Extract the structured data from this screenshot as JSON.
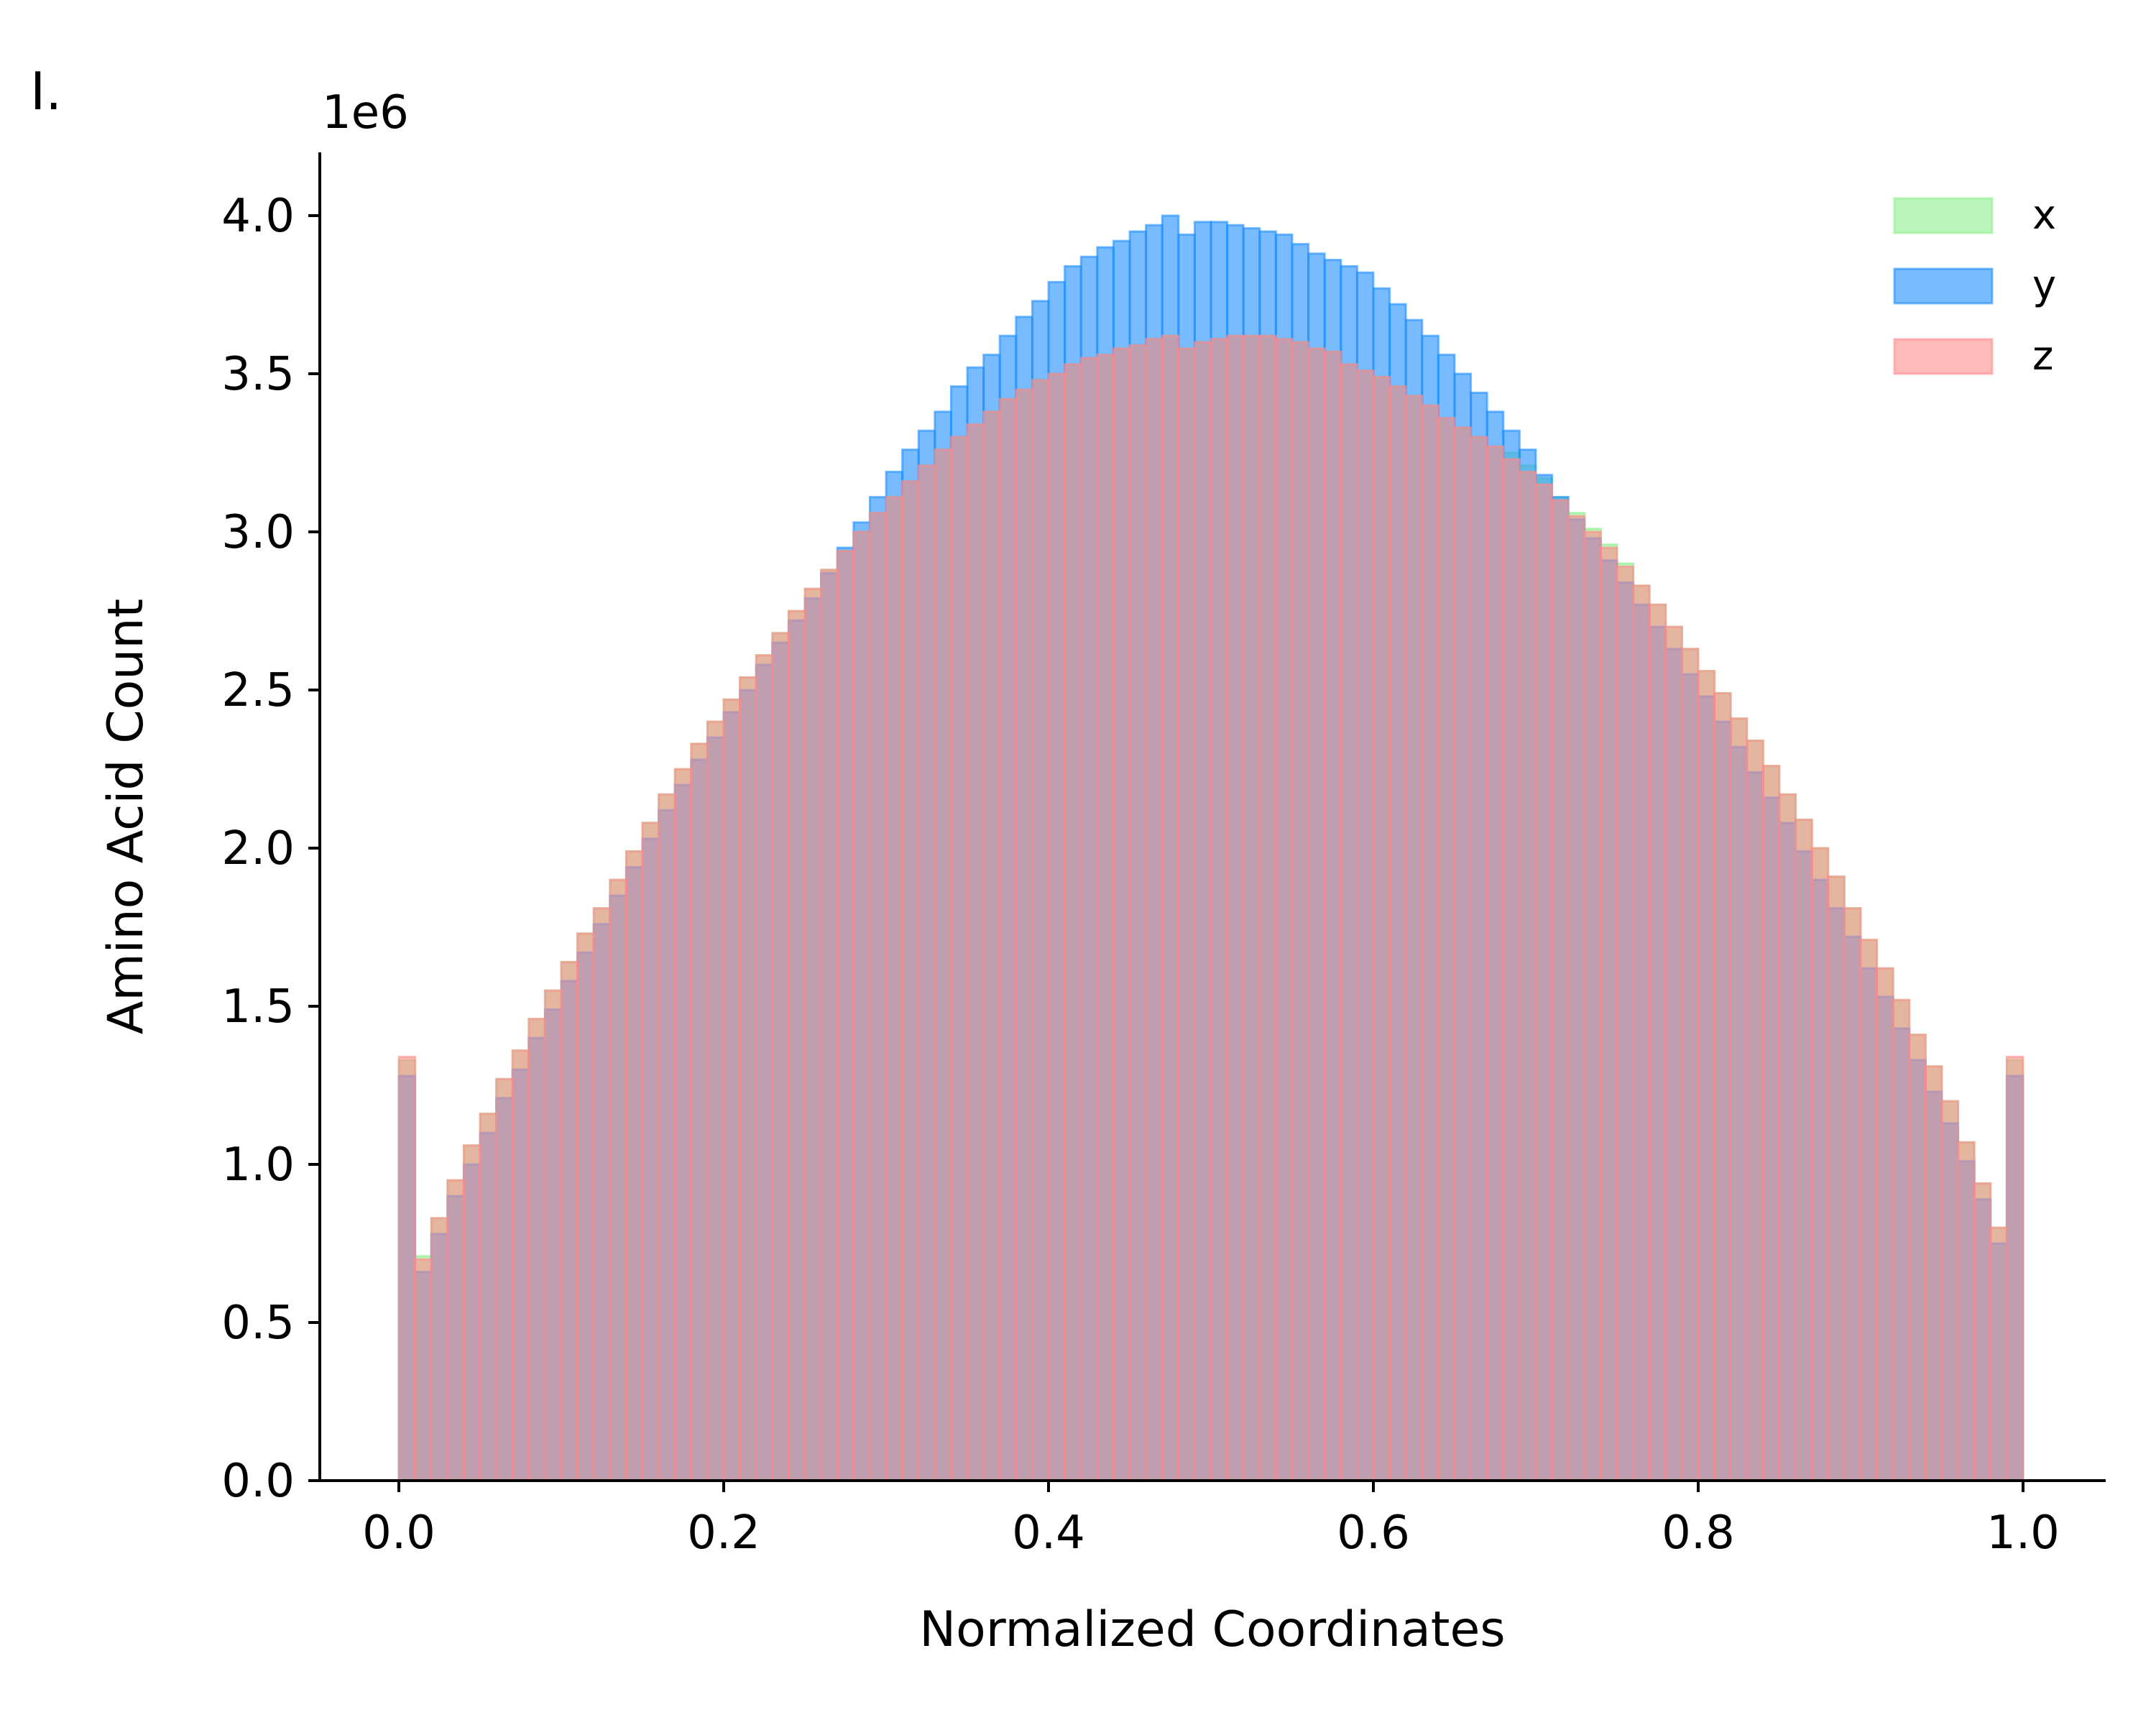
{
  "panel_label": "I.",
  "chart_data": {
    "type": "bar",
    "subtype": "overlaid histogram",
    "xlabel": "Normalized Coordinates",
    "ylabel": "Amino Acid Count",
    "y_offset_text": "1e6",
    "xlim": [
      -0.05,
      1.05
    ],
    "ylim": [
      0,
      4200000
    ],
    "xticks": [
      "0.0",
      "0.2",
      "0.4",
      "0.6",
      "0.8",
      "1.0"
    ],
    "yticks": [
      "0.0",
      "0.5",
      "1.0",
      "1.5",
      "2.0",
      "2.5",
      "3.0",
      "3.5",
      "4.0"
    ],
    "grid": false,
    "legend_position": "top-right",
    "bins": 100,
    "bin_range": [
      0,
      1
    ],
    "series": [
      {
        "name": "x",
        "color": "#90EE90",
        "values": [
          1.33,
          0.71,
          0.83,
          0.95,
          1.06,
          1.16,
          1.27,
          1.36,
          1.46,
          1.55,
          1.64,
          1.73,
          1.81,
          1.9,
          1.99,
          2.08,
          2.17,
          2.25,
          2.33,
          2.4,
          2.47,
          2.54,
          2.61,
          2.68,
          2.75,
          2.82,
          2.88,
          2.94,
          3.0,
          3.06,
          3.11,
          3.16,
          3.21,
          3.26,
          3.3,
          3.34,
          3.38,
          3.42,
          3.45,
          3.48,
          3.5,
          3.53,
          3.55,
          3.56,
          3.58,
          3.59,
          3.61,
          3.62,
          3.58,
          3.6,
          3.61,
          3.62,
          3.62,
          3.62,
          3.61,
          3.6,
          3.58,
          3.57,
          3.53,
          3.51,
          3.49,
          3.46,
          3.43,
          3.4,
          3.36,
          3.33,
          3.3,
          3.27,
          3.25,
          3.21,
          3.17,
          3.11,
          3.06,
          3.01,
          2.96,
          2.9,
          2.83,
          2.77,
          2.7,
          2.63,
          2.56,
          2.49,
          2.41,
          2.34,
          2.26,
          2.17,
          2.09,
          2.0,
          1.91,
          1.81,
          1.71,
          1.62,
          1.52,
          1.41,
          1.31,
          1.2,
          1.07,
          0.94,
          0.8,
          1.33
        ]
      },
      {
        "name": "y",
        "color": "#1E90FF",
        "values": [
          1.28,
          0.66,
          0.78,
          0.9,
          1.0,
          1.1,
          1.21,
          1.3,
          1.4,
          1.49,
          1.58,
          1.67,
          1.76,
          1.85,
          1.94,
          2.03,
          2.12,
          2.2,
          2.28,
          2.35,
          2.43,
          2.5,
          2.58,
          2.65,
          2.72,
          2.79,
          2.87,
          2.95,
          3.03,
          3.11,
          3.19,
          3.26,
          3.32,
          3.38,
          3.46,
          3.52,
          3.56,
          3.62,
          3.68,
          3.73,
          3.79,
          3.84,
          3.87,
          3.9,
          3.92,
          3.95,
          3.97,
          4.0,
          3.94,
          3.98,
          3.98,
          3.97,
          3.96,
          3.95,
          3.94,
          3.91,
          3.88,
          3.86,
          3.84,
          3.82,
          3.77,
          3.72,
          3.67,
          3.62,
          3.56,
          3.5,
          3.44,
          3.38,
          3.32,
          3.26,
          3.18,
          3.11,
          3.04,
          2.98,
          2.91,
          2.84,
          2.77,
          2.7,
          2.63,
          2.55,
          2.48,
          2.4,
          2.32,
          2.24,
          2.16,
          2.08,
          1.99,
          1.9,
          1.81,
          1.72,
          1.62,
          1.53,
          1.43,
          1.33,
          1.23,
          1.13,
          1.01,
          0.89,
          0.75,
          1.28
        ]
      },
      {
        "name": "z",
        "color": "#FF8C8C",
        "values": [
          1.34,
          0.7,
          0.83,
          0.95,
          1.06,
          1.16,
          1.27,
          1.36,
          1.46,
          1.55,
          1.64,
          1.73,
          1.81,
          1.9,
          1.99,
          2.08,
          2.17,
          2.25,
          2.33,
          2.4,
          2.47,
          2.54,
          2.61,
          2.68,
          2.75,
          2.82,
          2.88,
          2.94,
          3.0,
          3.06,
          3.11,
          3.16,
          3.21,
          3.26,
          3.3,
          3.34,
          3.38,
          3.42,
          3.45,
          3.48,
          3.5,
          3.53,
          3.55,
          3.56,
          3.58,
          3.59,
          3.61,
          3.62,
          3.58,
          3.6,
          3.61,
          3.62,
          3.62,
          3.62,
          3.61,
          3.6,
          3.58,
          3.57,
          3.53,
          3.51,
          3.49,
          3.46,
          3.43,
          3.4,
          3.36,
          3.33,
          3.3,
          3.27,
          3.23,
          3.19,
          3.15,
          3.1,
          3.05,
          3.0,
          2.95,
          2.89,
          2.83,
          2.77,
          2.7,
          2.63,
          2.56,
          2.49,
          2.41,
          2.34,
          2.26,
          2.17,
          2.09,
          2.0,
          1.91,
          1.81,
          1.71,
          1.62,
          1.52,
          1.41,
          1.31,
          1.2,
          1.07,
          0.94,
          0.8,
          1.34
        ]
      }
    ]
  }
}
